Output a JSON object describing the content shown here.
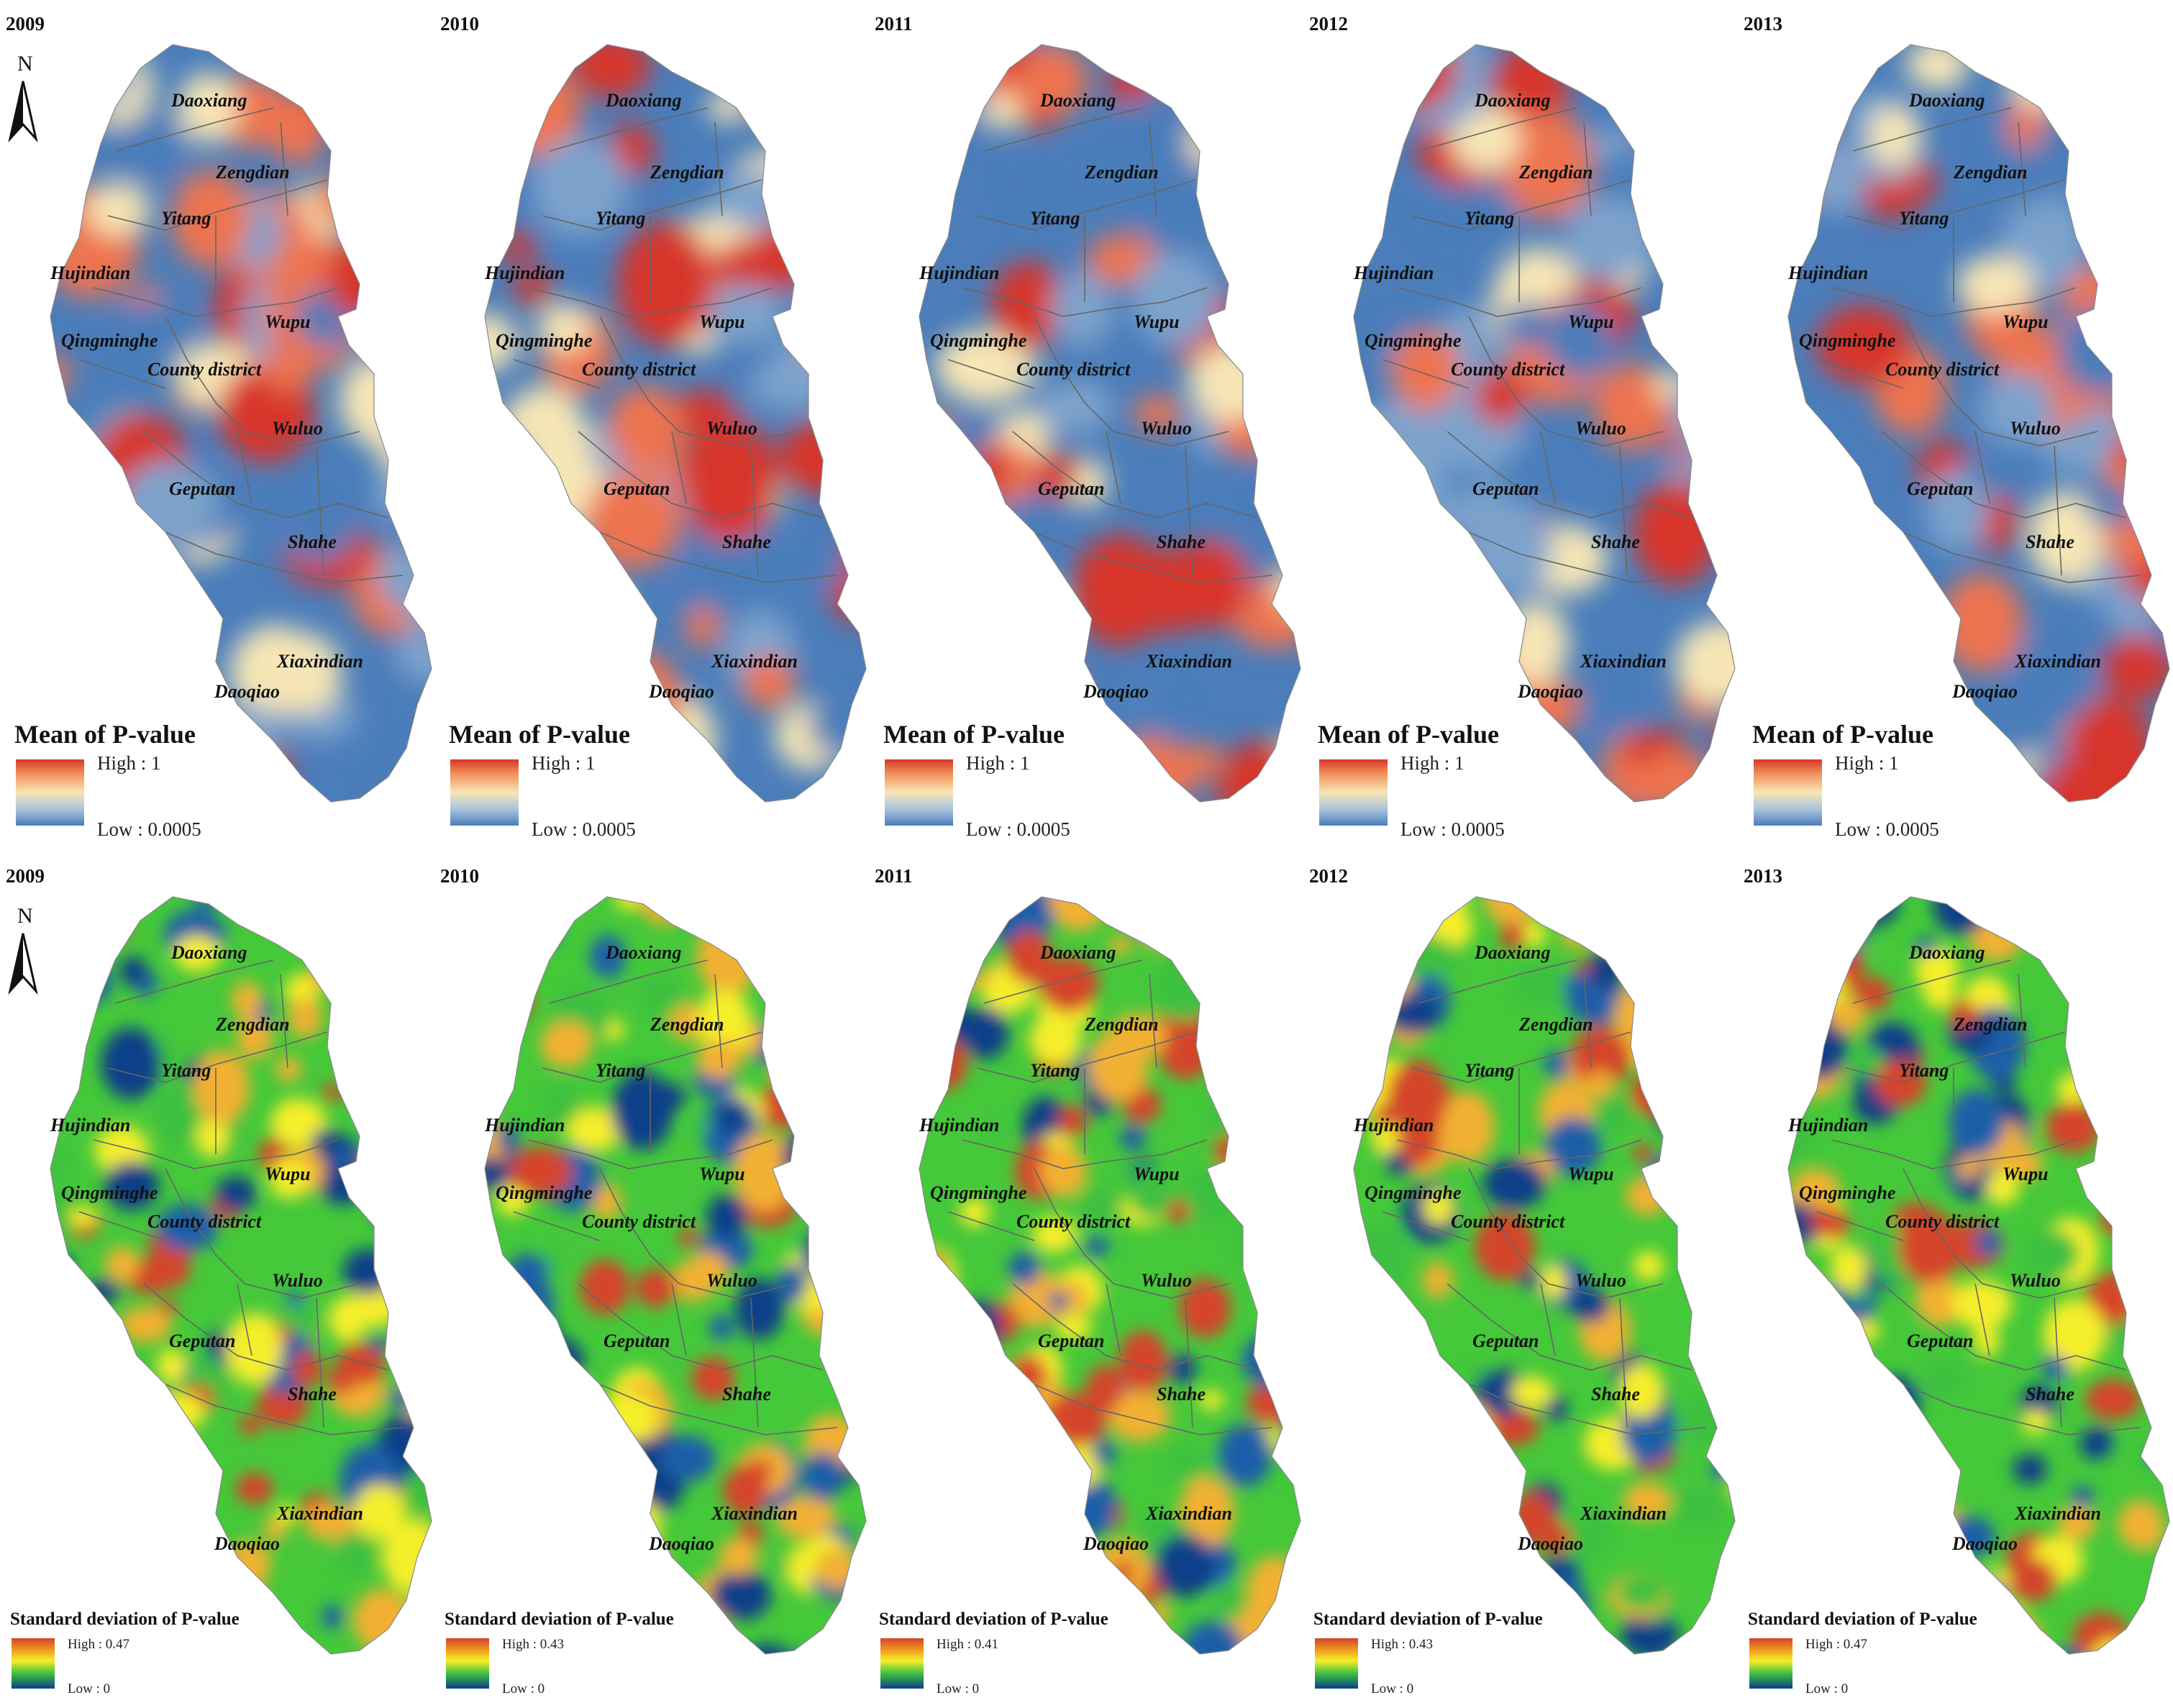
{
  "north_label": "N",
  "towns": [
    "Daoxiang",
    "Zengdian",
    "Yitang",
    "Hujindian",
    "Qingminghe",
    "Wupu",
    "County district",
    "Wuluo",
    "Geputan",
    "Shahe",
    "Xiaxindian",
    "Daoqiao"
  ],
  "top_row": {
    "legend": {
      "title": "Mean of P-value",
      "high": "High : 1",
      "low": "Low : 0.0005"
    },
    "colors": {
      "high": "#d7352b",
      "mid": "#f7e6b5",
      "low": "#4a7dba"
    },
    "panels": [
      {
        "year": "2009"
      },
      {
        "year": "2010"
      },
      {
        "year": "2011"
      },
      {
        "year": "2012"
      },
      {
        "year": "2013"
      }
    ]
  },
  "bottom_row": {
    "legend_title": "Standard deviation of P-value",
    "low": "Low : 0",
    "colors": {
      "high": "#d4442a",
      "mid": "#f5ee2a",
      "green": "#3cc040",
      "low": "#0a3f88"
    },
    "panels": [
      {
        "year": "2009",
        "high": "High : 0.47"
      },
      {
        "year": "2010",
        "high": "High : 0.43"
      },
      {
        "year": "2011",
        "high": "High : 0.41"
      },
      {
        "year": "2012",
        "high": "High : 0.43"
      },
      {
        "year": "2013",
        "high": "High : 0.47"
      }
    ]
  }
}
